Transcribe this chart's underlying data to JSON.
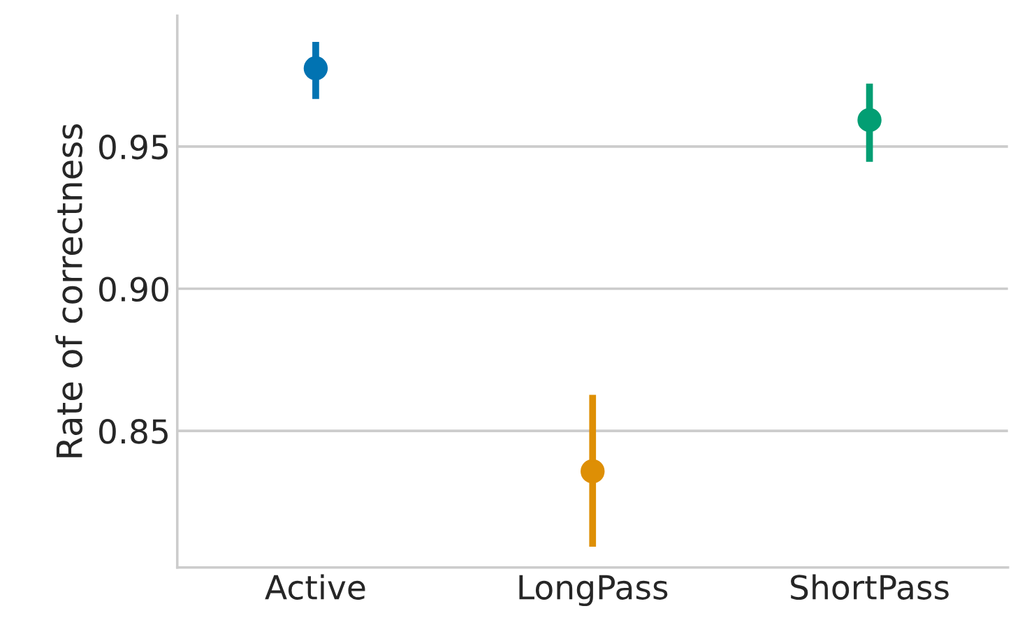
{
  "chart_data": {
    "type": "scatter",
    "ylabel": "Rate of correctness",
    "categories": [
      "Active",
      "LongPass",
      "ShortPass"
    ],
    "values": [
      0.9775,
      0.8358,
      0.9593
    ],
    "errors": [
      [
        0.9667,
        0.9868
      ],
      [
        0.8093,
        0.8627
      ],
      [
        0.9446,
        0.9721
      ]
    ],
    "colors": [
      "#0173b2",
      "#de8f05",
      "#029e73"
    ],
    "ylim": [
      0.802,
      0.996
    ],
    "yticks": [
      {
        "value": 0.85,
        "label": "0.85"
      },
      {
        "value": 0.9,
        "label": "0.90"
      },
      {
        "value": 0.95,
        "label": "0.95"
      }
    ],
    "grid": "y",
    "marker": "circle"
  }
}
